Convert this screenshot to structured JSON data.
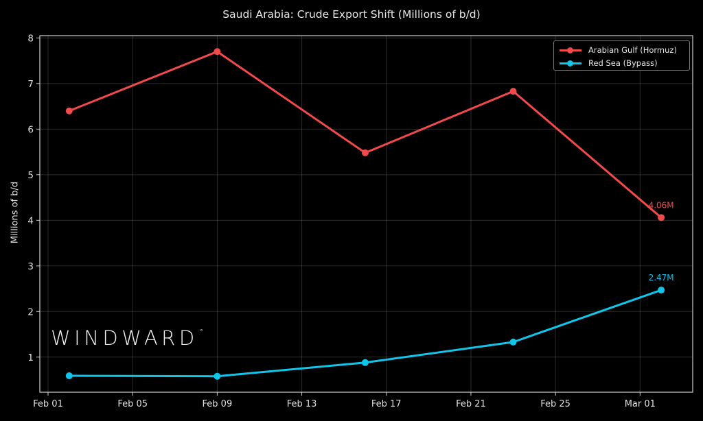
{
  "chart": {
    "title": "Saudi Arabia: Crude Export Shift (Millions of b/d)",
    "ylabel": "Millions of b/d",
    "watermark": "WINDWARD",
    "watermark_mark": "°",
    "background": "#000000"
  },
  "legend": {
    "items": [
      {
        "label": "Arabian Gulf (Hormuz)",
        "color": "#f24a4a"
      },
      {
        "label": "Red Sea (Bypass)",
        "color": "#0fc6ea"
      }
    ]
  },
  "chart_data": {
    "type": "line",
    "title": "Saudi Arabia: Crude Export Shift (Millions of b/d)",
    "xlabel": "",
    "ylabel": "Millions of b/d",
    "x": [
      "Feb 02",
      "Feb 09",
      "Feb 16",
      "Feb 23",
      "Mar 02"
    ],
    "x_day_index": [
      1,
      8,
      15,
      22,
      29
    ],
    "series": [
      {
        "name": "Arabian Gulf (Hormuz)",
        "color": "#f24a4a",
        "values": [
          6.4,
          7.7,
          5.48,
          6.83,
          4.06
        ],
        "end_label": "4.06M"
      },
      {
        "name": "Red Sea (Bypass)",
        "color": "#0fc6ea",
        "values": [
          0.59,
          0.58,
          0.88,
          1.33,
          2.47
        ],
        "end_label": "2.47M"
      }
    ],
    "xticks": [
      "Feb 01",
      "Feb 05",
      "Feb 09",
      "Feb 13",
      "Feb 17",
      "Feb 21",
      "Feb 25",
      "Mar 01"
    ],
    "xtick_day_index": [
      0,
      4,
      8,
      12,
      16,
      20,
      24,
      28
    ],
    "yticks": [
      1,
      2,
      3,
      4,
      5,
      6,
      7,
      8
    ],
    "ylim": [
      0.23,
      8.05
    ],
    "xlim_day_index": [
      -0.39,
      30.49
    ],
    "grid": true,
    "legend_position": "upper right"
  }
}
